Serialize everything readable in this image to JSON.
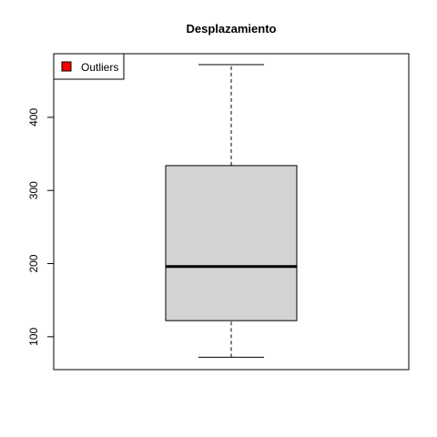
{
  "chart_data": {
    "type": "box",
    "title": "Desplazamiento",
    "xlabel": "",
    "ylabel": "",
    "ylim": [
      55,
      487
    ],
    "yticks": [
      100,
      200,
      300,
      400
    ],
    "box": {
      "min": 72,
      "q1": 122,
      "median": 196,
      "q3": 334,
      "max": 472,
      "fill": "#d3d3d3"
    },
    "legend": {
      "position": "top-left",
      "entries": [
        {
          "label": "Outliers",
          "color": "#ff0000"
        }
      ]
    },
    "grid": false
  }
}
